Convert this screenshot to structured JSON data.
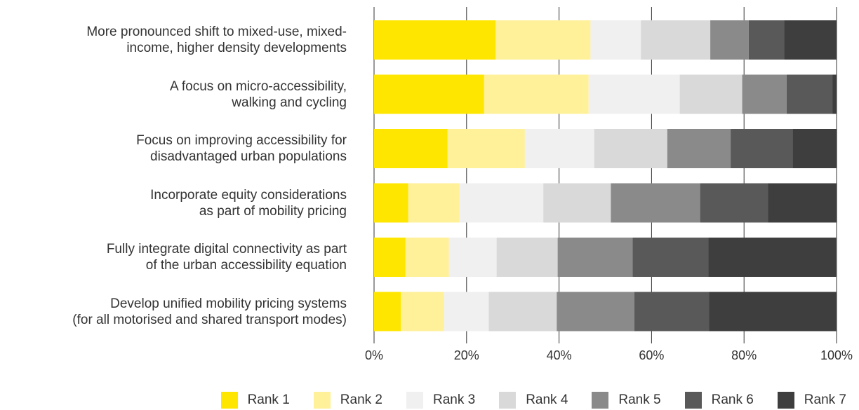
{
  "chart_data": {
    "type": "stacked-barh",
    "categories": [
      "More pronounced shift to mixed-use, mixed-\nincome, higher density developments",
      "A focus on micro-accessibility,\nwalking and cycling",
      "Focus on improving accessibility for\ndisadvantaged urban populations",
      "Incorporate equity considerations\nas part of mobility pricing",
      "Fully integrate digital connectivity as part\nof the urban accessibility equation",
      "Develop unified mobility pricing systems\n(for all motorised and  shared transport modes)"
    ],
    "series": [
      {
        "name": "Rank 1",
        "color": "#ffe600",
        "values": [
          26.3,
          23.8,
          15.9,
          7.4,
          6.8,
          5.8
        ]
      },
      {
        "name": "Rank 2",
        "color": "#fff09a",
        "values": [
          20.5,
          22.6,
          16.7,
          11.1,
          9.4,
          9.3
        ]
      },
      {
        "name": "Rank 3",
        "color": "#f0f0f0",
        "values": [
          10.9,
          19.7,
          15.0,
          18.1,
          10.3,
          9.7
        ]
      },
      {
        "name": "Rank 4",
        "color": "#d9d9d9",
        "values": [
          15.0,
          13.5,
          15.8,
          14.6,
          13.2,
          14.7
        ]
      },
      {
        "name": "Rank 5",
        "color": "#8a8a8a",
        "values": [
          8.3,
          9.6,
          13.7,
          19.3,
          16.2,
          16.8
        ]
      },
      {
        "name": "Rank 6",
        "color": "#595959",
        "values": [
          7.7,
          9.9,
          13.4,
          14.7,
          16.4,
          16.1
        ]
      },
      {
        "name": "Rank 7",
        "color": "#3e3e3e",
        "values": [
          11.3,
          0.9,
          9.6,
          14.9,
          27.6,
          27.6
        ]
      }
    ],
    "xlim": [
      0,
      100
    ],
    "xticks": [
      {
        "value": 0,
        "label": "0%"
      },
      {
        "value": 20,
        "label": "20%"
      },
      {
        "value": 40,
        "label": "40%"
      },
      {
        "value": 60,
        "label": "60%"
      },
      {
        "value": 80,
        "label": "80%"
      },
      {
        "value": 100,
        "label": "100%"
      }
    ],
    "grid": true,
    "legend": "bottom"
  }
}
